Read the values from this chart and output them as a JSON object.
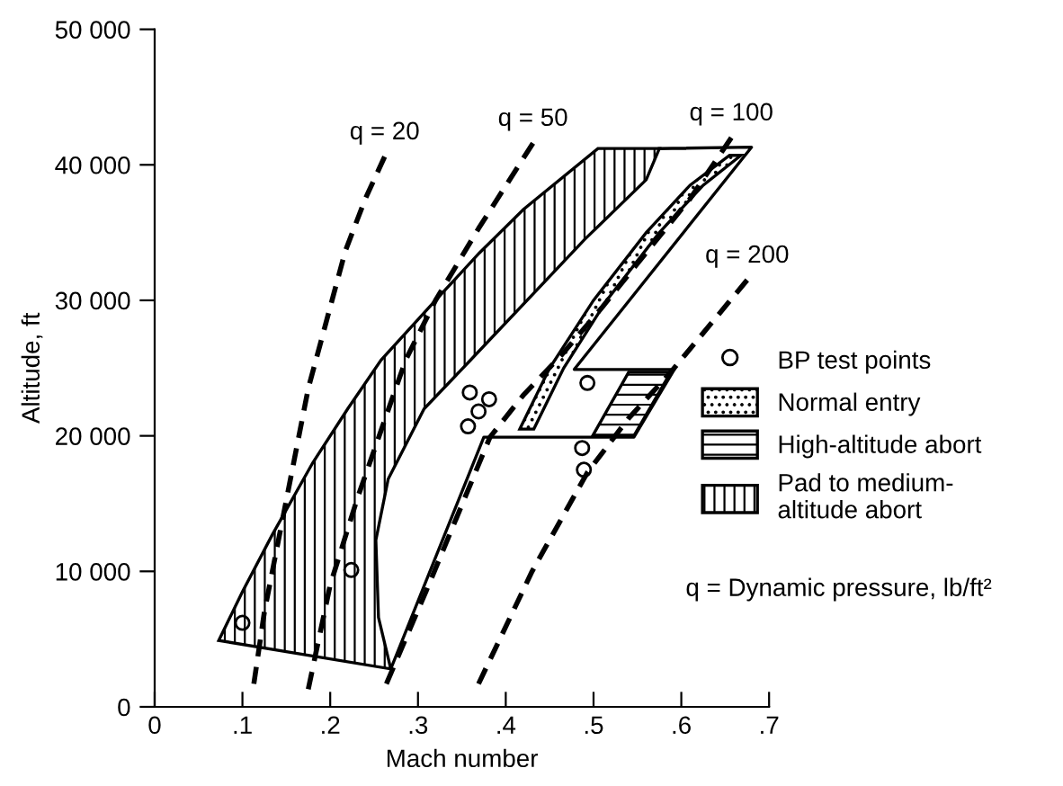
{
  "chart_data": {
    "type": "line",
    "xlabel": "Mach number",
    "ylabel": "Altitude, ft",
    "xlim": [
      0,
      0.7
    ],
    "xticks": [
      0,
      {
        "value": 0.1,
        "label": ".1"
      },
      {
        "value": 0.2,
        "label": ".2"
      },
      {
        "value": 0.3,
        "label": ".3"
      },
      {
        "value": 0.4,
        "label": ".4"
      },
      {
        "value": 0.5,
        "label": ".5"
      },
      {
        "value": 0.6,
        "label": ".6"
      },
      {
        "value": 0.7,
        "label": ".7"
      }
    ],
    "ylim": [
      0,
      50000
    ],
    "yticks": [
      0,
      {
        "value": 10000,
        "label": "10 000"
      },
      {
        "value": 20000,
        "label": "20 000"
      },
      {
        "value": 30000,
        "label": "30 000"
      },
      {
        "value": 40000,
        "label": "40 000"
      },
      {
        "value": 50000,
        "label": "50 000"
      }
    ],
    "grid": false,
    "legend": "right",
    "series": [
      {
        "name": "BP test points",
        "type": "scatter",
        "marker": "circle",
        "color": "#000000",
        "x": [
          0.1,
          0.224,
          0.359,
          0.381,
          0.369,
          0.357,
          0.493,
          0.487,
          0.489
        ],
        "values": [
          6200,
          10100,
          23200,
          22700,
          21800,
          20700,
          23900,
          19100,
          17500
        ]
      },
      {
        "name": "Normal entry",
        "type": "area",
        "color": "#000000",
        "x": [
          0.416,
          0.45,
          0.5,
          0.56,
          0.61,
          0.655,
          0.668,
          0.625,
          0.575,
          0.515,
          0.466,
          0.432
        ],
        "values": [
          20500,
          25000,
          30000,
          35000,
          38500,
          40700,
          40700,
          38500,
          35000,
          30000,
          25000,
          20500
        ]
      },
      {
        "name": "High-altitude abort",
        "type": "area",
        "color": "#000000",
        "x": [
          0.499,
          0.546,
          0.588,
          0.54
        ],
        "values": [
          20000,
          20000,
          24700,
          24700
        ]
      },
      {
        "name": "Pad to medium-altitude abort",
        "type": "area",
        "color": "#000000",
        "x": [
          0.073,
          0.1,
          0.134,
          0.18,
          0.22,
          0.258,
          0.32,
          0.37,
          0.42,
          0.505,
          0.575,
          0.56,
          0.49,
          0.36,
          0.307,
          0.266,
          0.252,
          0.255,
          0.269
        ],
        "values": [
          4900,
          8500,
          12700,
          18000,
          22000,
          25600,
          30000,
          33500,
          36700,
          41200,
          41200,
          38900,
          34500,
          25600,
          22000,
          16800,
          12300,
          6600,
          2800
        ]
      },
      {
        "line_style": "solid",
        "color": "#000000",
        "x": [
          0.575,
          0.68,
          0.478,
          0.592,
          0.546,
          0.375,
          0.269
        ],
        "values": [
          41200,
          41300,
          24900,
          24900,
          19900,
          19900,
          2800
        ]
      },
      {
        "name": "q = 20",
        "line_style": "dashed",
        "color": "#000000",
        "x": [
          0.113,
          0.125,
          0.148,
          0.175,
          0.2,
          0.217,
          0.24,
          0.262
        ],
        "values": [
          1700,
          7000,
          14600,
          23500,
          29500,
          33600,
          37500,
          40600
        ]
      },
      {
        "name": "q = 50",
        "line_style": "dashed",
        "color": "#000000",
        "x": [
          0.175,
          0.2,
          0.231,
          0.286,
          0.32,
          0.369,
          0.431
        ],
        "values": [
          1300,
          9000,
          15400,
          25600,
          30000,
          35300,
          41600
        ]
      },
      {
        "name": "q = 100",
        "line_style": "dashed",
        "color": "#000000",
        "x": [
          0.264,
          0.309,
          0.382,
          0.42,
          0.464,
          0.51,
          0.561,
          0.61,
          0.657
        ],
        "values": [
          1700,
          8500,
          19900,
          23000,
          26000,
          29500,
          33600,
          37500,
          42000
        ]
      },
      {
        "name": "q = 200",
        "line_style": "dashed",
        "color": "#000000",
        "x": [
          0.369,
          0.43,
          0.493,
          0.54,
          0.588,
          0.675
        ],
        "values": [
          1700,
          10000,
          17300,
          21300,
          24700,
          31500
        ]
      }
    ],
    "annotations": [
      "q = Dynamic pressure, lb/ft²"
    ]
  }
}
